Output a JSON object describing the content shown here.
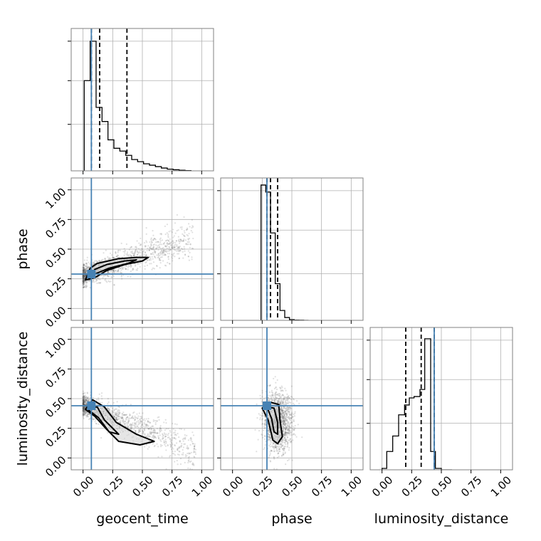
{
  "chart_data": {
    "type": "corner",
    "parameters": [
      "geocent_time",
      "phase",
      "luminosity_distance"
    ],
    "truths": {
      "geocent_time": 0.07,
      "phase": 0.29,
      "luminosity_distance": 0.44
    },
    "range": [
      -0.1,
      1.1
    ],
    "ticks": [
      0.0,
      0.25,
      0.5,
      0.75,
      1.0
    ],
    "tick_labels": [
      "0.00",
      "0.25",
      "0.50",
      "0.75",
      "1.00"
    ],
    "grid": true,
    "histograms": {
      "geocent_time": {
        "bin_edges": [
          0.01,
          0.06,
          0.11,
          0.16,
          0.21,
          0.26,
          0.31,
          0.36,
          0.41,
          0.46,
          0.51,
          0.56,
          0.61,
          0.66,
          0.71,
          0.76,
          0.81,
          0.86,
          0.91
        ],
        "counts": [
          0.64,
          0.92,
          0.45,
          0.35,
          0.22,
          0.16,
          0.14,
          0.11,
          0.08,
          0.065,
          0.05,
          0.04,
          0.03,
          0.02,
          0.012,
          0.008,
          0.004,
          0.002
        ],
        "quantiles": [
          0.07,
          0.14,
          0.37
        ],
        "ylim": [
          0,
          1.0
        ]
      },
      "phase": {
        "bin_edges": [
          0.24,
          0.28,
          0.32,
          0.36,
          0.4,
          0.44,
          0.48,
          0.52,
          0.56,
          0.6,
          0.64
        ],
        "counts": [
          0.96,
          0.91,
          0.62,
          0.26,
          0.07,
          0.02,
          0.005,
          0.002,
          0.001,
          0.0
        ],
        "quantiles": [
          0.29,
          0.32,
          0.38
        ],
        "ylim": [
          0,
          1.0
        ]
      },
      "luminosity_distance": {
        "bin_edges": [
          0.0,
          0.04,
          0.09,
          0.14,
          0.19,
          0.23,
          0.27,
          0.32,
          0.36,
          0.41,
          0.45,
          0.5,
          0.55,
          0.59
        ],
        "counts": [
          0.01,
          0.13,
          0.24,
          0.39,
          0.46,
          0.51,
          0.52,
          0.57,
          0.93,
          0.13,
          0.01,
          0.0,
          0.0
        ],
        "quantiles": [
          0.2,
          0.33,
          0.44
        ],
        "ylim": [
          0,
          1.0
        ]
      }
    },
    "contours": {
      "phase_vs_geocent_time": {
        "inner": [
          [
            0.05,
            0.28
          ],
          [
            0.1,
            0.33
          ],
          [
            0.2,
            0.37
          ],
          [
            0.35,
            0.4
          ],
          [
            0.45,
            0.41
          ],
          [
            0.38,
            0.38
          ],
          [
            0.22,
            0.34
          ],
          [
            0.1,
            0.29
          ],
          [
            0.05,
            0.28
          ]
        ],
        "outer": [
          [
            0.02,
            0.24
          ],
          [
            0.06,
            0.34
          ],
          [
            0.12,
            0.38
          ],
          [
            0.3,
            0.42
          ],
          [
            0.45,
            0.43
          ],
          [
            0.55,
            0.43
          ],
          [
            0.5,
            0.4
          ],
          [
            0.35,
            0.37
          ],
          [
            0.2,
            0.32
          ],
          [
            0.1,
            0.26
          ],
          [
            0.02,
            0.24
          ]
        ]
      },
      "luminosity_distance_vs_geocent_time": {
        "inner": [
          [
            0.04,
            0.42
          ],
          [
            0.12,
            0.43
          ],
          [
            0.18,
            0.32
          ],
          [
            0.3,
            0.2
          ],
          [
            0.22,
            0.22
          ],
          [
            0.13,
            0.34
          ],
          [
            0.05,
            0.4
          ],
          [
            0.04,
            0.42
          ]
        ],
        "outer": [
          [
            0.02,
            0.41
          ],
          [
            0.08,
            0.49
          ],
          [
            0.18,
            0.43
          ],
          [
            0.28,
            0.3
          ],
          [
            0.45,
            0.2
          ],
          [
            0.6,
            0.14
          ],
          [
            0.48,
            0.11
          ],
          [
            0.3,
            0.14
          ],
          [
            0.2,
            0.24
          ],
          [
            0.1,
            0.35
          ],
          [
            0.02,
            0.41
          ]
        ]
      },
      "luminosity_distance_vs_phase": {
        "inner": [
          [
            0.29,
            0.43
          ],
          [
            0.35,
            0.42
          ],
          [
            0.38,
            0.3
          ],
          [
            0.38,
            0.2
          ],
          [
            0.35,
            0.22
          ],
          [
            0.33,
            0.33
          ],
          [
            0.29,
            0.43
          ]
        ],
        "outer": [
          [
            0.25,
            0.42
          ],
          [
            0.32,
            0.47
          ],
          [
            0.39,
            0.45
          ],
          [
            0.4,
            0.32
          ],
          [
            0.42,
            0.18
          ],
          [
            0.38,
            0.12
          ],
          [
            0.34,
            0.15
          ],
          [
            0.3,
            0.32
          ],
          [
            0.25,
            0.42
          ]
        ]
      }
    },
    "sample_clouds": {
      "phase_vs_geocent_time": {
        "trend": "increasing",
        "x_range": [
          0.0,
          0.93
        ],
        "y_at_x0": 0.28,
        "y_at_x1": 0.58,
        "spread": 0.07
      },
      "luminosity_distance_vs_geocent_time": {
        "trend": "decreasing",
        "x_range": [
          0.0,
          0.95
        ],
        "y_at_x0": 0.45,
        "y_at_x1": 0.05,
        "spread": 0.07
      },
      "luminosity_distance_vs_phase": {
        "trend": "blob",
        "x_center": 0.38,
        "y_center": 0.3,
        "x_spread": 0.06,
        "y_spread": 0.13
      }
    }
  }
}
